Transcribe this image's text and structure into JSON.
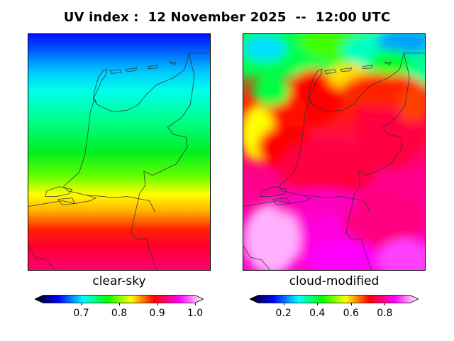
{
  "title": "UV index :  12 November 2025  --  12:00 UTC",
  "panels": [
    {
      "label": "clear-sky",
      "colorbar": {
        "ticks": [
          "0.7",
          "0.8",
          "0.9",
          "1.0"
        ],
        "tick_values": [
          0.7,
          0.8,
          0.9,
          1.0
        ],
        "range": [
          0.6,
          1.0
        ]
      }
    },
    {
      "label": "cloud-modified",
      "colorbar": {
        "ticks": [
          "0.2",
          "0.4",
          "0.6",
          "0.8"
        ],
        "tick_values": [
          0.2,
          0.4,
          0.6,
          0.8
        ],
        "range": [
          0.05,
          0.95
        ]
      }
    }
  ],
  "colormap": [
    "#000000",
    "#0000ff",
    "#00ffff",
    "#00ff00",
    "#ffff00",
    "#ff0000",
    "#ff00ff",
    "#ffffff"
  ],
  "region": "Netherlands"
}
